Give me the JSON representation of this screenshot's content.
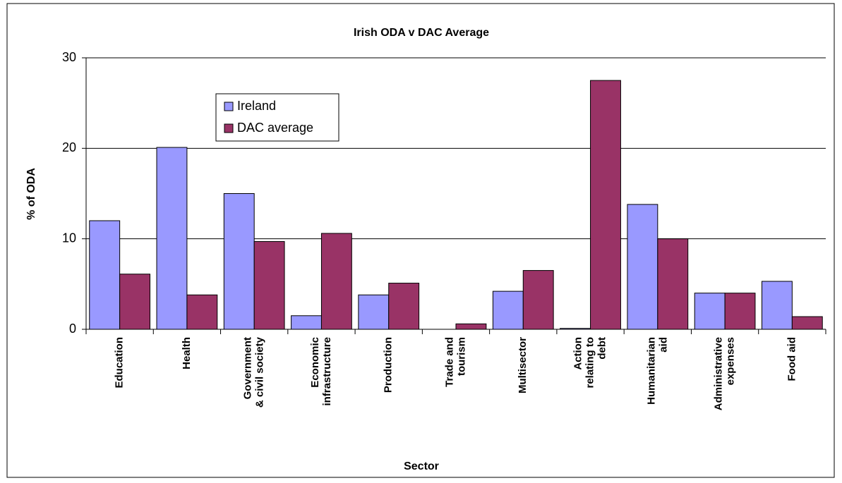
{
  "chart_data": {
    "type": "bar",
    "title": "Irish ODA v DAC Average",
    "x_label": "Sector",
    "y_label": "% of ODA",
    "categories": [
      "Education",
      "Health",
      "Government\n& civil society",
      "Economic\ninfrastructure",
      "Production",
      "Trade and\ntourism",
      "Multisector",
      "Action\nrelating to\ndebt",
      "Humanitarian\naid",
      "Administrative\nexpenses",
      "Food aid"
    ],
    "series": [
      {
        "name": "Ireland",
        "color": "#9999ff",
        "values": [
          12.0,
          20.1,
          15.0,
          1.5,
          3.8,
          0,
          4.2,
          0.1,
          13.8,
          4.0,
          5.3
        ]
      },
      {
        "name": "DAC average",
        "color": "#993366",
        "values": [
          6.1,
          3.8,
          9.7,
          10.6,
          5.1,
          0.6,
          6.5,
          27.5,
          10.0,
          4.0,
          1.4
        ]
      }
    ],
    "ylim": [
      0,
      30
    ],
    "yticks": [
      0,
      10,
      20,
      30
    ],
    "grid": true,
    "legend": "upper left"
  }
}
